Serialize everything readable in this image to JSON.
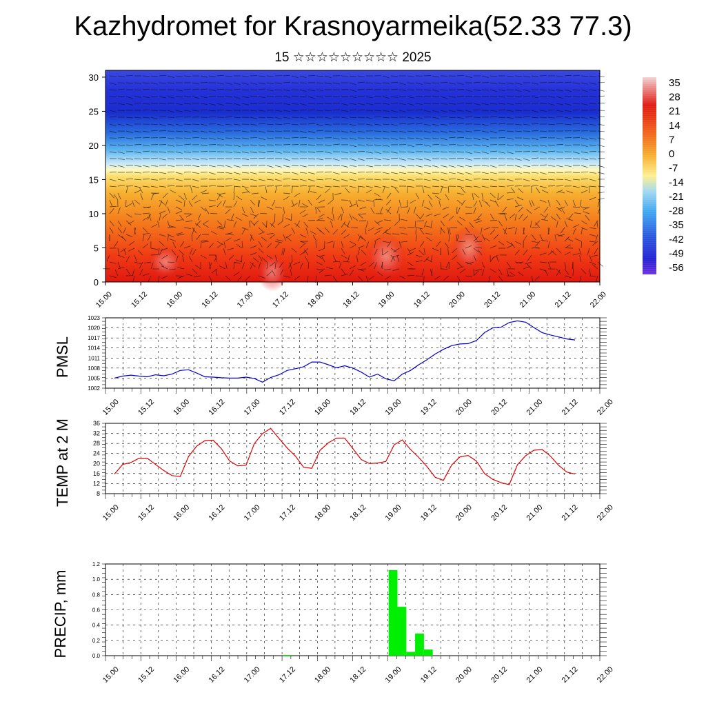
{
  "title": "Kazhydromet for Krasnoyarmeika(52.33 77.3)",
  "subtitle": "15 ☆☆☆☆☆☆☆☆☆ 2025",
  "chart_data": [
    {
      "type": "heatmap",
      "y_ticks": [
        "0",
        "5",
        "10",
        "15",
        "20",
        "25",
        "30"
      ],
      "ylim": [
        0,
        31
      ],
      "x_ticks": [
        "15.00",
        "15.12",
        "16.00",
        "16.12",
        "17.00",
        "17.12",
        "18.00",
        "18.12",
        "19.00",
        "19.12",
        "20.00",
        "20.12",
        "21.00",
        "21.12",
        "22.00"
      ],
      "colorbar": {
        "labels": [
          "35",
          "28",
          "21",
          "14",
          "7",
          "0",
          "-7",
          "-14",
          "-21",
          "-28",
          "-35",
          "-42",
          "-49",
          "-56"
        ],
        "stops": [
          "#f2d2d2",
          "#e51c14",
          "#f0a020",
          "#fff080",
          "#a0d8f0",
          "#3090e0",
          "#2030d0",
          "#8040e0"
        ]
      },
      "overlay": "wind-barbs"
    },
    {
      "type": "line",
      "ylabel": "PMSL",
      "y_ticks": [
        "1002",
        "1005",
        "1008",
        "1011",
        "1014",
        "1017",
        "1020",
        "1023"
      ],
      "ylim": [
        1002,
        1023
      ],
      "x_ticks": [
        "15.00",
        "15.12",
        "16.00",
        "16.12",
        "17.00",
        "17.12",
        "18.00",
        "18.12",
        "19.00",
        "19.12",
        "20.00",
        "20.12",
        "21.00",
        "21.12",
        "22.00"
      ],
      "color": "#0000cc",
      "values": [
        1005,
        1005.6,
        1005.9,
        1005.6,
        1005.4,
        1006.0,
        1005.7,
        1006.2,
        1007.3,
        1007.5,
        1006.5,
        1005.4,
        1005.3,
        1005.1,
        1005.0,
        1005.0,
        1005.3,
        1004.9,
        1003.8,
        1005.2,
        1006.0,
        1007.3,
        1007.8,
        1008.4,
        1009.8,
        1009.8,
        1009.0,
        1008.1,
        1008.7,
        1008.0,
        1006.8,
        1005.3,
        1006.2,
        1004.8,
        1004.2,
        1006.2,
        1007.3,
        1009.0,
        1010.5,
        1012.2,
        1013.6,
        1014.7,
        1015.2,
        1015.3,
        1016.2,
        1018.6,
        1020.0,
        1020.2,
        1021.6,
        1022.1,
        1021.7,
        1020.1,
        1018.6,
        1017.9,
        1017.3,
        1016.7,
        1016.4
      ],
      "grid": true
    },
    {
      "type": "line",
      "ylabel": "TEMP at 2 M",
      "y_ticks": [
        "8",
        "12",
        "16",
        "20",
        "24",
        "28",
        "32",
        "36"
      ],
      "ylim": [
        8,
        36
      ],
      "x_ticks": [
        "15.00",
        "15.12",
        "16.00",
        "16.12",
        "17.00",
        "17.12",
        "18.00",
        "18.12",
        "19.00",
        "19.12",
        "20.00",
        "20.12",
        "21.00",
        "21.12",
        "22.00"
      ],
      "color": "#dd0000",
      "values": [
        15.8,
        19.6,
        20.4,
        22.1,
        22.1,
        19.6,
        17.2,
        15.2,
        14.8,
        22.8,
        26.9,
        29.1,
        29.3,
        25.9,
        21.0,
        19.1,
        19.3,
        27.9,
        31.9,
        34.0,
        30.0,
        26.2,
        23.0,
        18.5,
        18.1,
        25.3,
        28.2,
        30.1,
        30.1,
        25.9,
        21.6,
        20.0,
        20.2,
        20.8,
        27.4,
        29.4,
        25.6,
        22.4,
        18.8,
        14.5,
        13.3,
        19.4,
        22.6,
        23.2,
        21.0,
        16.0,
        13.7,
        12.4,
        11.6,
        19.5,
        23.1,
        25.3,
        25.6,
        23.0,
        19.3,
        16.6,
        15.8
      ],
      "grid": true
    },
    {
      "type": "bar",
      "ylabel": "PRECIP, mm",
      "y_ticks": [
        "0.0",
        "0.2",
        "0.4",
        "0.6",
        "0.8",
        "1.0",
        "1.2"
      ],
      "ylim": [
        0,
        1.2
      ],
      "x_ticks": [
        "15.00",
        "15.12",
        "16.00",
        "16.12",
        "17.00",
        "17.12",
        "18.00",
        "18.12",
        "19.00",
        "19.12",
        "20.00",
        "20.12",
        "21.00",
        "21.12",
        "22.00"
      ],
      "color": "#00ee00",
      "bars": [
        {
          "x": 20.5,
          "value": 0.01
        },
        {
          "x": 32.5,
          "value": 1.12
        },
        {
          "x": 33.5,
          "value": 0.64
        },
        {
          "x": 34.5,
          "value": 0.05
        },
        {
          "x": 35.5,
          "value": 0.29
        },
        {
          "x": 36.5,
          "value": 0.08
        }
      ],
      "grid": true
    }
  ]
}
